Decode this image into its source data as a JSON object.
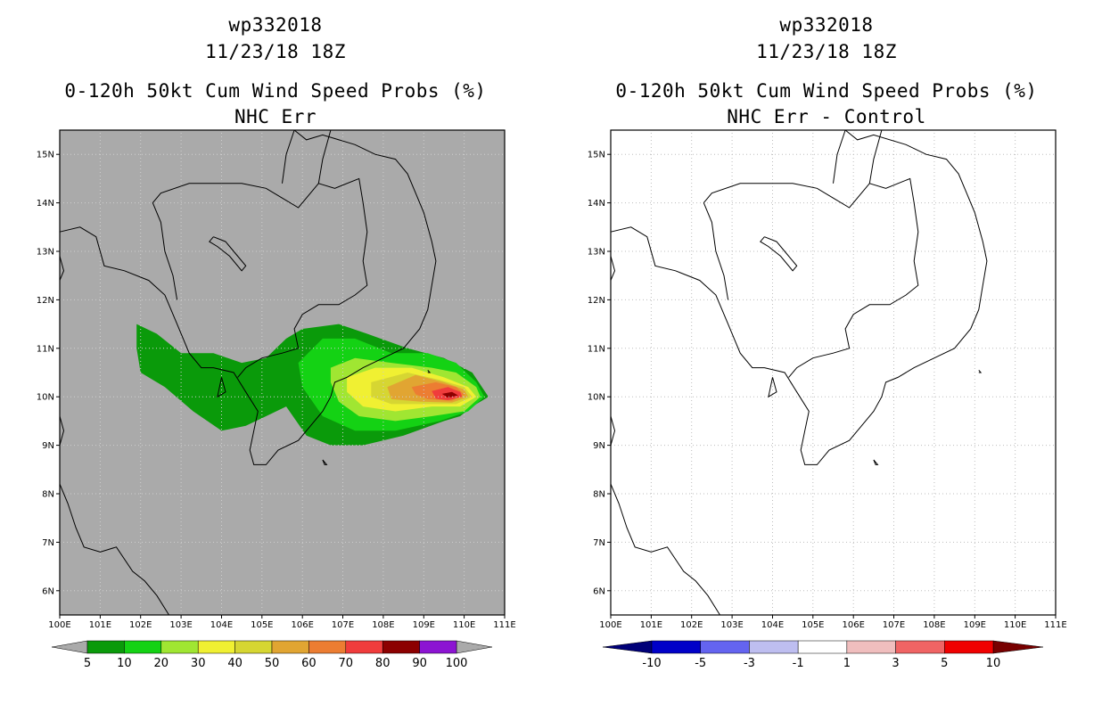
{
  "panels": [
    {
      "id": "left",
      "title_line1": "wp332018",
      "title_line2": "11/23/18 18Z",
      "title_line3": "0-120h 50kt Cum Wind Speed Probs (%)",
      "title_line4": "NHC Err",
      "background": "#aaaaaa",
      "colorbar": {
        "labels": [
          "5",
          "10",
          "20",
          "30",
          "40",
          "50",
          "60",
          "70",
          "80",
          "90",
          "100"
        ],
        "colors": [
          "#0a9a0a",
          "#14d214",
          "#a0e632",
          "#f0f032",
          "#d6d632",
          "#e1a532",
          "#ec7d32",
          "#f03c3c",
          "#8c0000",
          "#8c14d2"
        ],
        "end_color": "#aaaaaa"
      }
    },
    {
      "id": "right",
      "title_line1": "wp332018",
      "title_line2": "11/23/18 18Z",
      "title_line3": "0-120h 50kt Cum Wind Speed Probs (%)",
      "title_line4": "NHC Err - Control",
      "background": "#ffffff",
      "colorbar": {
        "labels": [
          "-10",
          "-5",
          "-3",
          "-1",
          "1",
          "3",
          "5",
          "10"
        ],
        "colors": [
          "#0000c8",
          "#6464f0",
          "#bebef0",
          "#ffffff",
          "#f0bebe",
          "#f06464",
          "#f00000"
        ],
        "end_low": "#000078",
        "end_high": "#780000"
      }
    }
  ],
  "axes": {
    "lon_labels": [
      "100E",
      "101E",
      "102E",
      "103E",
      "104E",
      "105E",
      "106E",
      "107E",
      "108E",
      "109E",
      "110E",
      "111E"
    ],
    "lat_labels": [
      "6N",
      "7N",
      "8N",
      "9N",
      "10N",
      "11N",
      "12N",
      "13N",
      "14N",
      "15N"
    ],
    "lon_range": [
      100,
      111
    ],
    "lat_range": [
      5.5,
      15.5
    ],
    "grid": "dotted"
  }
}
